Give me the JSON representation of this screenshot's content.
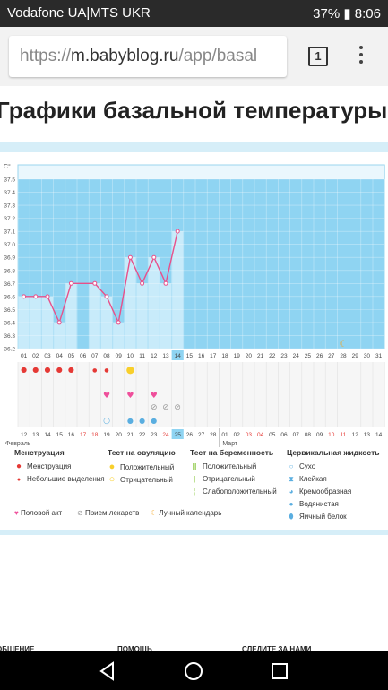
{
  "status": {
    "carrier": "Vodafone UA|MTS UKR",
    "battery": "37%",
    "time": "8:06"
  },
  "browser": {
    "url_prefix": "https://",
    "url_host": "m.babyblog.ru",
    "url_path": "/app/basal",
    "tab_count": "1"
  },
  "page": {
    "title": "Графики базальной температуры"
  },
  "chart_data": {
    "type": "line",
    "ylabel": "C°",
    "ylim": [
      36.2,
      37.5
    ],
    "y_ticks": [
      "37.5",
      "37.4",
      "37.3",
      "37.2",
      "37.1",
      "37.0",
      "36.9",
      "36.8",
      "36.7",
      "36.6",
      "36.5",
      "36.4",
      "36.3",
      "36.2"
    ],
    "x_cycle_days": [
      "01",
      "02",
      "03",
      "04",
      "05",
      "06",
      "07",
      "08",
      "09",
      "10",
      "11",
      "12",
      "13",
      "14",
      "15",
      "16",
      "17",
      "18",
      "19",
      "20",
      "21",
      "22",
      "23",
      "24",
      "25",
      "26",
      "27",
      "28",
      "29",
      "30",
      "31"
    ],
    "x_calendar_days": [
      "12",
      "13",
      "14",
      "15",
      "16",
      "17",
      "18",
      "19",
      "20",
      "21",
      "22",
      "23",
      "24",
      "25",
      "26",
      "27",
      "28",
      "01",
      "02",
      "03",
      "04",
      "05",
      "06",
      "07",
      "08",
      "09",
      "10",
      "11",
      "12",
      "13",
      "14"
    ],
    "calendar_red_days": [
      "17",
      "18",
      "24",
      "03",
      "04",
      "10",
      "11"
    ],
    "highlight_cycle_day": "14",
    "highlight_calendar_day": "25",
    "month_labels": [
      "Февраль",
      "Март"
    ],
    "values": [
      36.6,
      36.6,
      36.6,
      36.4,
      36.7,
      null,
      36.7,
      36.6,
      36.4,
      36.9,
      36.7,
      36.9,
      36.7,
      37.1
    ],
    "menstruation_days": [
      1,
      2,
      3,
      4,
      5
    ],
    "light_discharge_days": [
      7,
      8
    ],
    "ovulation_positive_days": [
      10
    ],
    "intercourse_days": [
      8,
      10,
      12
    ],
    "medication_days": [
      12,
      13,
      14
    ],
    "cervical_watery_days": [
      10,
      11,
      12
    ],
    "cervical_dry_days": [
      8
    ],
    "moon_day": 28
  },
  "legend": {
    "menstruation": {
      "heading": "Менструация",
      "items": [
        "Менструация",
        "Небольшие выделения"
      ]
    },
    "ovulation": {
      "heading": "Тест на овуляцию",
      "items": [
        "Положительный",
        "Отрицательный"
      ]
    },
    "pregnancy": {
      "heading": "Тест на беременность",
      "items": [
        "Положительный",
        "Отрицательный",
        "Слабоположительный"
      ]
    },
    "cervical": {
      "heading": "Цервикальная жидкость",
      "items": [
        "Сухо",
        "Клейкая",
        "Кремообразная",
        "Водянистая",
        "Яичный белок"
      ]
    },
    "other": [
      "Половой акт",
      "Прием лекарств",
      "Лунный календарь"
    ]
  },
  "footer": {
    "col1": "ОБЩЕНИЕ",
    "col2": "ПОМОЩЬ",
    "col3": "СЛЕДИТЕ ЗА НАМИ"
  },
  "colors": {
    "plot_bg": "#8fd4f2",
    "bar_fill": "#c8ebfa",
    "line": "#e8508a",
    "drop": "#e53935",
    "heart": "#ef4f9b",
    "moon": "#f5a623",
    "ovulation": "#f8cf2b",
    "pregnancy": "#7cc12a"
  }
}
